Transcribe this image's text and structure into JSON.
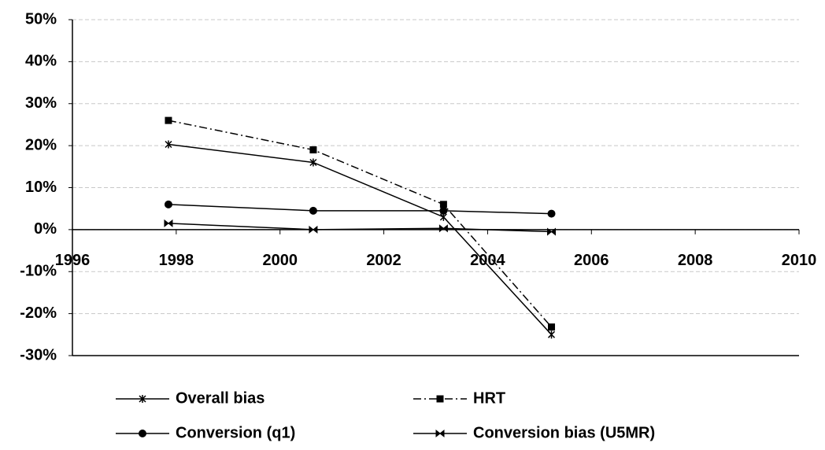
{
  "chart_data": {
    "type": "line",
    "series": [
      {
        "name": "Overall bias",
        "color": "#000000",
        "marker": "star",
        "dash": "solid",
        "x": [
          1997.85,
          2000.64,
          2003.15,
          2005.23
        ],
        "values": [
          20.3,
          16,
          3,
          -25
        ]
      },
      {
        "name": "HRT",
        "color": "#000000",
        "marker": "square",
        "dash": "dashdot",
        "x": [
          1997.85,
          2000.64,
          2003.15,
          2005.23
        ],
        "values": [
          26,
          19,
          6,
          -23.2
        ]
      },
      {
        "name": "Conversion (q1)",
        "color": "#000000",
        "marker": "circle",
        "dash": "solid",
        "x": [
          1997.85,
          2000.64,
          2003.15,
          2005.23
        ],
        "values": [
          6,
          4.5,
          4.5,
          3.8
        ]
      },
      {
        "name": "Conversion bias (U5MR)",
        "color": "#000000",
        "marker": "bowtie",
        "dash": "solid",
        "x": [
          1997.85,
          2000.64,
          2003.15,
          2005.23
        ],
        "values": [
          1.5,
          0,
          0.3,
          -0.5
        ]
      }
    ],
    "xlim": [
      1996,
      2010
    ],
    "xticks": [
      1996,
      1998,
      2000,
      2002,
      2004,
      2006,
      2008,
      2010
    ],
    "ylim": [
      -30,
      50
    ],
    "yticks": [
      {
        "value": -30,
        "label": "-30%"
      },
      {
        "value": -20,
        "label": "-20%"
      },
      {
        "value": -10,
        "label": "-10%"
      },
      {
        "value": 0,
        "label": "0%"
      },
      {
        "value": 10,
        "label": "10%"
      },
      {
        "value": 20,
        "label": "20%"
      },
      {
        "value": 30,
        "label": "30%"
      },
      {
        "value": 40,
        "label": "40%"
      },
      {
        "value": 50,
        "label": "50%"
      }
    ],
    "grid": true
  }
}
